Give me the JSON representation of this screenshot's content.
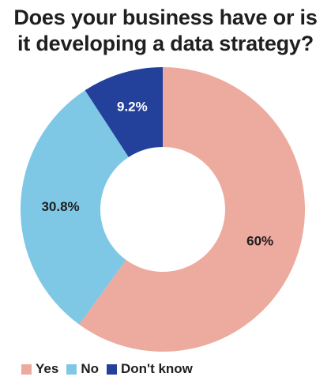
{
  "chart_data": {
    "type": "pie",
    "title": "Does your business have or is it developing a data strategy?",
    "title_lines": [
      "Does your business have or is",
      "it developing a data strategy?"
    ],
    "slices": [
      {
        "label": "Yes",
        "value": 60,
        "display": "60%",
        "color": "#EDAA9E"
      },
      {
        "label": "No",
        "value": 30.8,
        "display": "30.8%",
        "color": "#7EC8E6"
      },
      {
        "label": "Don't know",
        "value": 9.2,
        "display": "9.2%",
        "color": "#23409A"
      }
    ],
    "legend": "bottom-left",
    "donut": true
  }
}
